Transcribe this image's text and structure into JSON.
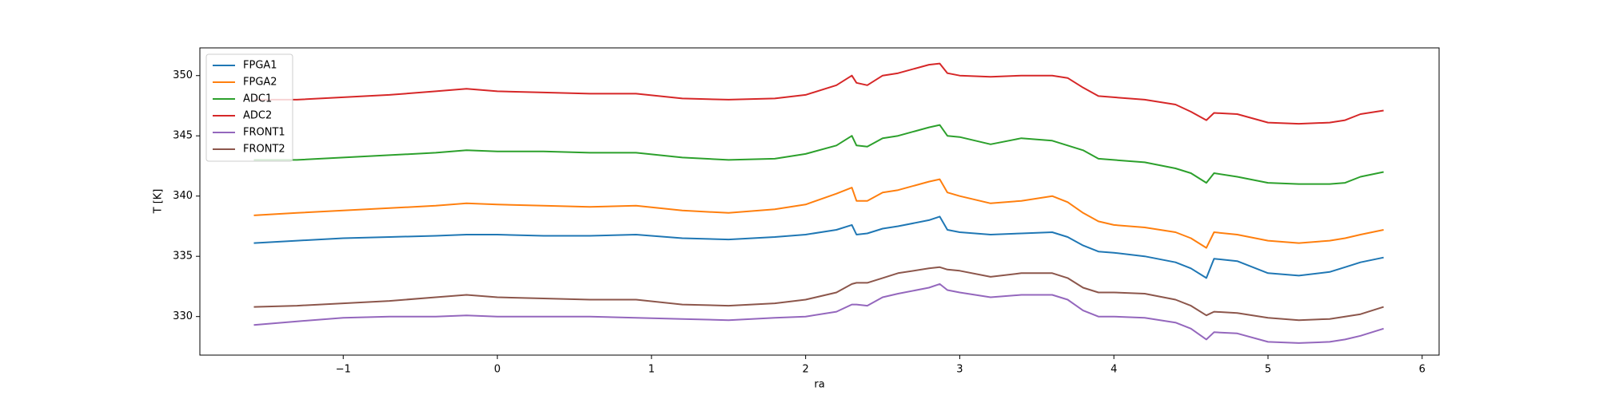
{
  "chart_data": {
    "type": "line",
    "xlabel": "ra",
    "ylabel": "T [K]",
    "x": [
      -1.58,
      -1.3,
      -1.0,
      -0.7,
      -0.4,
      -0.2,
      0,
      0.3,
      0.6,
      0.9,
      1.2,
      1.5,
      1.8,
      2.0,
      2.2,
      2.3,
      2.33,
      2.4,
      2.5,
      2.6,
      2.8,
      2.87,
      2.92,
      3.0,
      3.2,
      3.4,
      3.6,
      3.7,
      3.8,
      3.9,
      4.0,
      4.2,
      4.4,
      4.5,
      4.6,
      4.65,
      4.8,
      5.0,
      5.2,
      5.4,
      5.5,
      5.6,
      5.75
    ],
    "series": [
      {
        "name": "FPGA1",
        "color": "#1f77b4",
        "values": [
          336.1,
          336.3,
          336.5,
          336.6,
          336.7,
          336.8,
          336.8,
          336.7,
          336.7,
          336.8,
          336.5,
          336.4,
          336.6,
          336.8,
          337.2,
          337.6,
          336.8,
          336.9,
          337.3,
          337.5,
          338.0,
          338.3,
          337.2,
          337.0,
          336.8,
          336.9,
          337.0,
          336.6,
          335.9,
          335.4,
          335.3,
          335.0,
          334.5,
          334.0,
          333.2,
          334.8,
          334.6,
          333.6,
          333.4,
          333.7,
          334.1,
          334.5,
          334.9
        ]
      },
      {
        "name": "FPGA2",
        "color": "#ff7f0e",
        "values": [
          338.4,
          338.6,
          338.8,
          339.0,
          339.2,
          339.4,
          339.3,
          339.2,
          339.1,
          339.2,
          338.8,
          338.6,
          338.9,
          339.3,
          340.2,
          340.7,
          339.6,
          339.6,
          340.3,
          340.5,
          341.2,
          341.4,
          340.3,
          340.0,
          339.4,
          339.6,
          340.0,
          339.5,
          338.6,
          337.9,
          337.6,
          337.4,
          337.0,
          336.5,
          335.7,
          337.0,
          336.8,
          336.3,
          336.1,
          336.3,
          336.5,
          336.8,
          337.2
        ]
      },
      {
        "name": "ADC1",
        "color": "#2ca02c",
        "values": [
          343.0,
          343.0,
          343.2,
          343.4,
          343.6,
          343.8,
          343.7,
          343.7,
          343.6,
          343.6,
          343.2,
          343.0,
          343.1,
          343.5,
          344.2,
          345.0,
          344.2,
          344.1,
          344.8,
          345.0,
          345.7,
          345.9,
          345.0,
          344.9,
          344.3,
          344.8,
          344.6,
          344.2,
          343.8,
          343.1,
          343.0,
          342.8,
          342.3,
          341.9,
          341.1,
          341.9,
          341.6,
          341.1,
          341.0,
          341.0,
          341.1,
          341.6,
          342.0
        ]
      },
      {
        "name": "ADC2",
        "color": "#d62728",
        "values": [
          348.0,
          348.0,
          348.2,
          348.4,
          348.7,
          348.9,
          348.7,
          348.6,
          348.5,
          348.5,
          348.1,
          348.0,
          348.1,
          348.4,
          349.2,
          350.0,
          349.4,
          349.2,
          350.0,
          350.2,
          350.9,
          351.0,
          350.2,
          350.0,
          349.9,
          350.0,
          350.0,
          349.8,
          349.0,
          348.3,
          348.2,
          348.0,
          347.6,
          347.0,
          346.3,
          346.9,
          346.8,
          346.1,
          346.0,
          346.1,
          346.3,
          346.8,
          347.1
        ]
      },
      {
        "name": "FRONT1",
        "color": "#9467bd",
        "values": [
          329.3,
          329.6,
          329.9,
          330.0,
          330.0,
          330.1,
          330.0,
          330.0,
          330.0,
          329.9,
          329.8,
          329.7,
          329.9,
          330.0,
          330.4,
          331.0,
          331.0,
          330.9,
          331.6,
          331.9,
          332.4,
          332.7,
          332.2,
          332.0,
          331.6,
          331.8,
          331.8,
          331.4,
          330.5,
          330.0,
          330.0,
          329.9,
          329.5,
          329.0,
          328.1,
          328.7,
          328.6,
          327.9,
          327.8,
          327.9,
          328.1,
          328.4,
          329.0
        ]
      },
      {
        "name": "FRONT2",
        "color": "#8c564b",
        "values": [
          330.8,
          330.9,
          331.1,
          331.3,
          331.6,
          331.8,
          331.6,
          331.5,
          331.4,
          331.4,
          331.0,
          330.9,
          331.1,
          331.4,
          332.0,
          332.7,
          332.8,
          332.8,
          333.2,
          333.6,
          334.0,
          334.1,
          333.9,
          333.8,
          333.3,
          333.6,
          333.6,
          333.2,
          332.4,
          332.0,
          332.0,
          331.9,
          331.4,
          330.9,
          330.1,
          330.4,
          330.3,
          329.9,
          329.7,
          329.8,
          330.0,
          330.2,
          330.8
        ]
      }
    ],
    "xlim": [
      -1.93,
      6.11
    ],
    "xticks": [
      {
        "value": -1,
        "label": "−1"
      },
      0,
      1,
      2,
      3,
      4,
      5,
      6
    ],
    "ylim": [
      326.8,
      352.3
    ],
    "yticks": [
      330,
      335,
      340,
      345,
      350
    ],
    "legend": "upper left",
    "grid": false
  }
}
